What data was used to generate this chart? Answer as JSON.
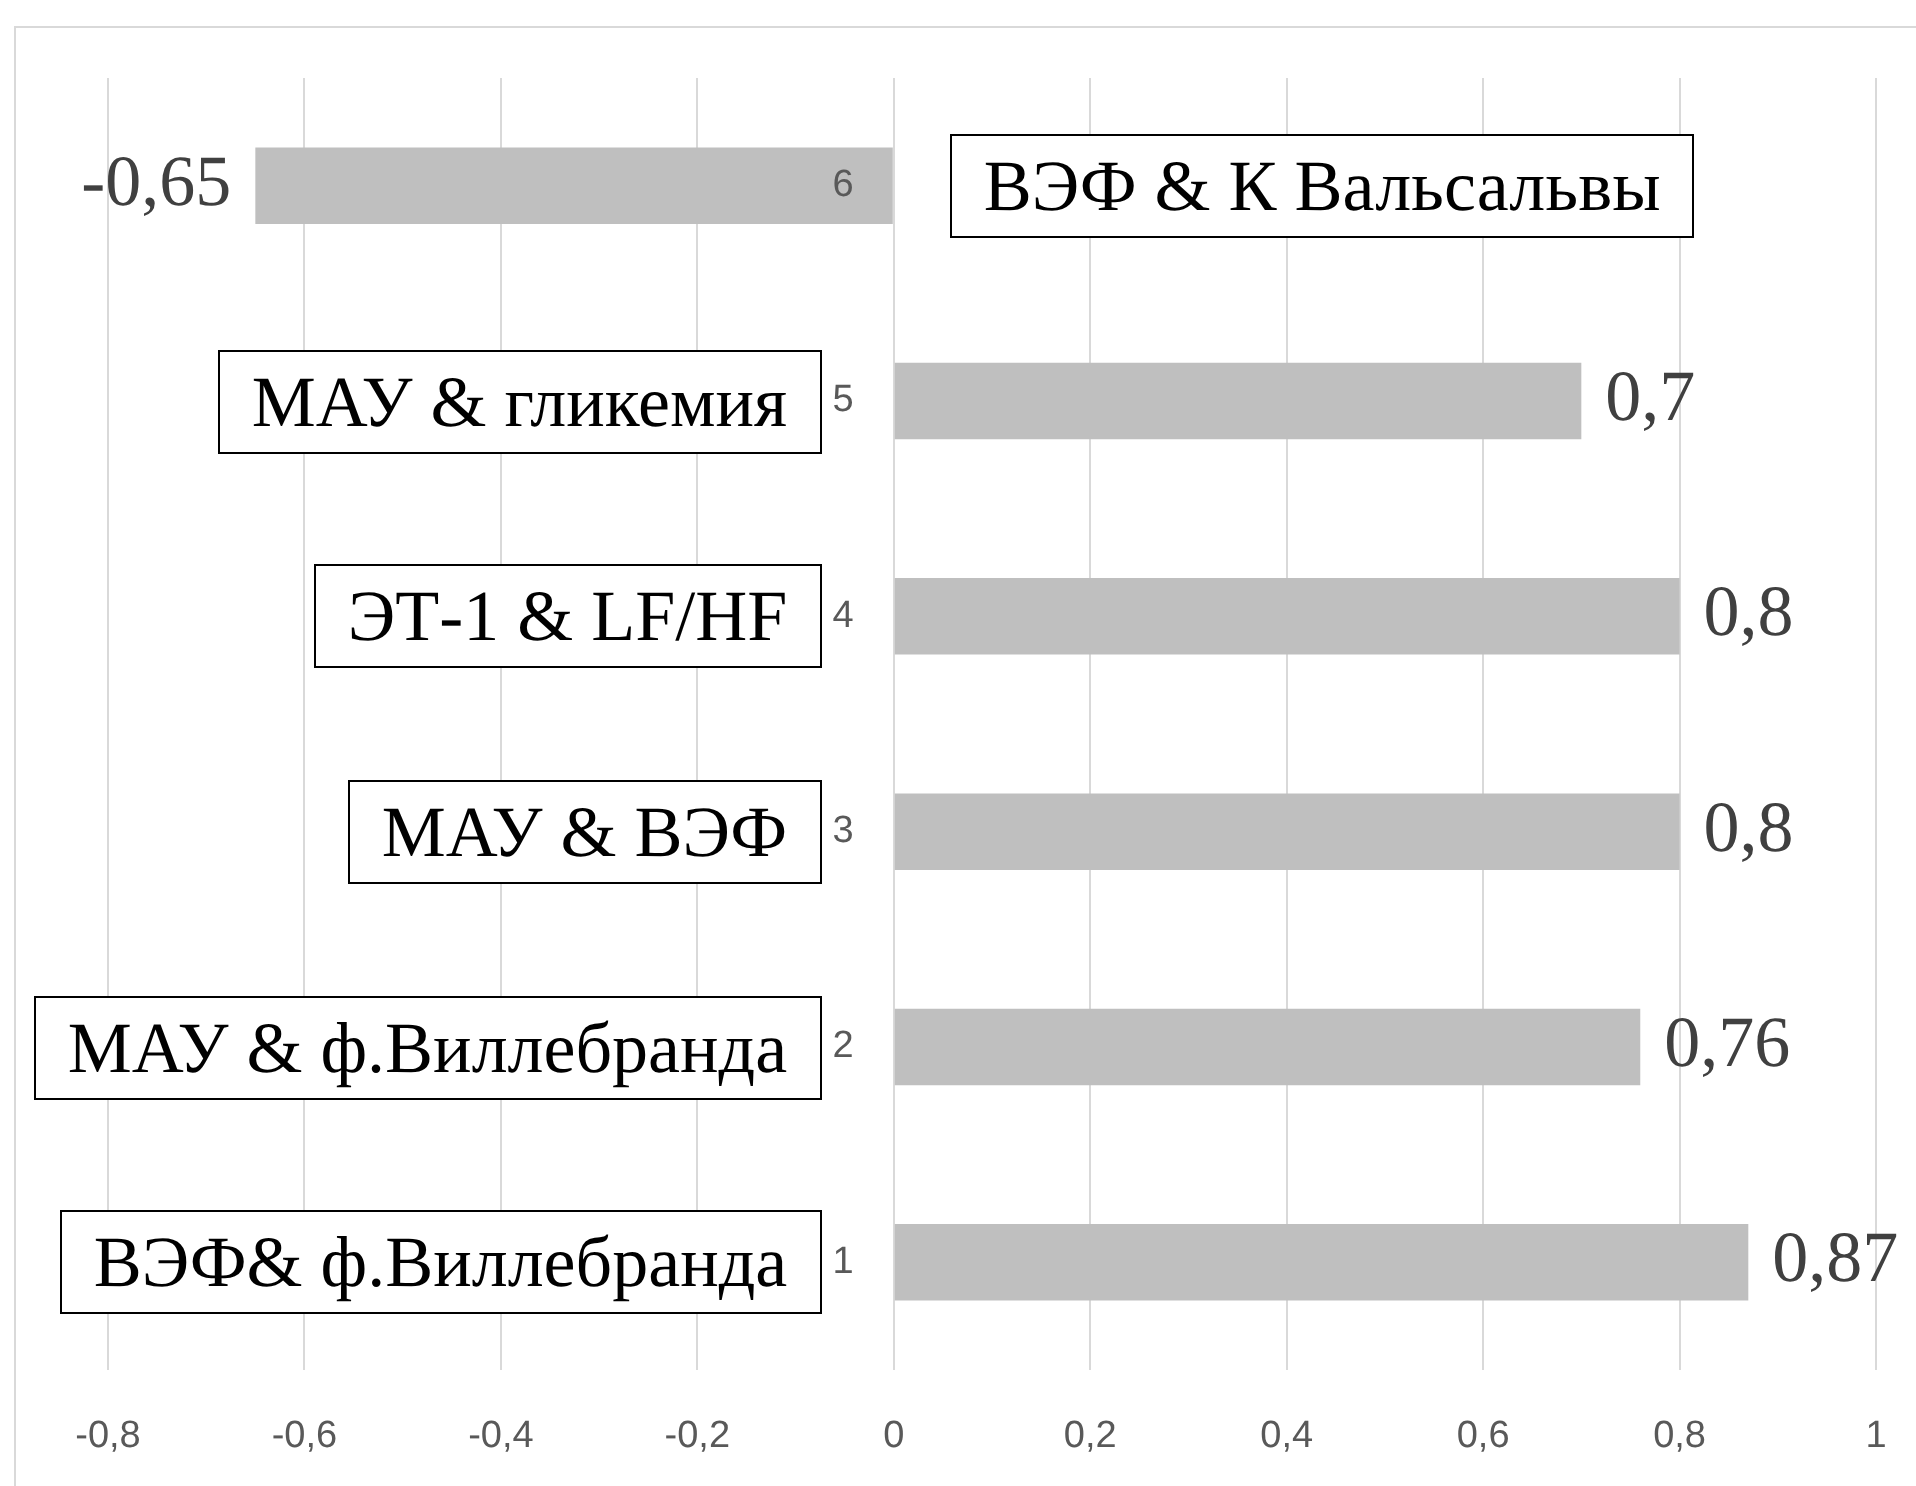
{
  "chart_data": {
    "type": "bar",
    "orientation": "horizontal",
    "categories": [
      "6",
      "5",
      "4",
      "3",
      "2",
      "1"
    ],
    "values": [
      -0.65,
      0.7,
      0.8,
      0.8,
      0.76,
      0.87
    ],
    "value_labels": [
      "-0,65",
      "0,7",
      "0,8",
      "0,8",
      "0,76",
      "0,87"
    ],
    "color": "#bfbfbf",
    "xlim": [
      -0.8,
      1
    ],
    "xticks": [
      {
        "value": -0.8,
        "label": "-0,8"
      },
      {
        "value": -0.6,
        "label": "-0,6"
      },
      {
        "value": -0.4,
        "label": "-0,4"
      },
      {
        "value": -0.2,
        "label": "-0,2"
      },
      0,
      {
        "value": 0.2,
        "label": "0,2"
      },
      {
        "value": 0.4,
        "label": "0,4"
      },
      {
        "value": 0.6,
        "label": "0,6"
      },
      {
        "value": 0.8,
        "label": "0,8"
      },
      1
    ],
    "grid": "x",
    "annotations": [
      "ВЭФ & К Вальсальвы",
      "МАУ & гликемия",
      "ЭТ-1 & LF/HF",
      "МАУ & ВЭФ",
      "МАУ & ф.Виллебранда",
      "ВЭФ& ф.Виллебранда"
    ]
  }
}
